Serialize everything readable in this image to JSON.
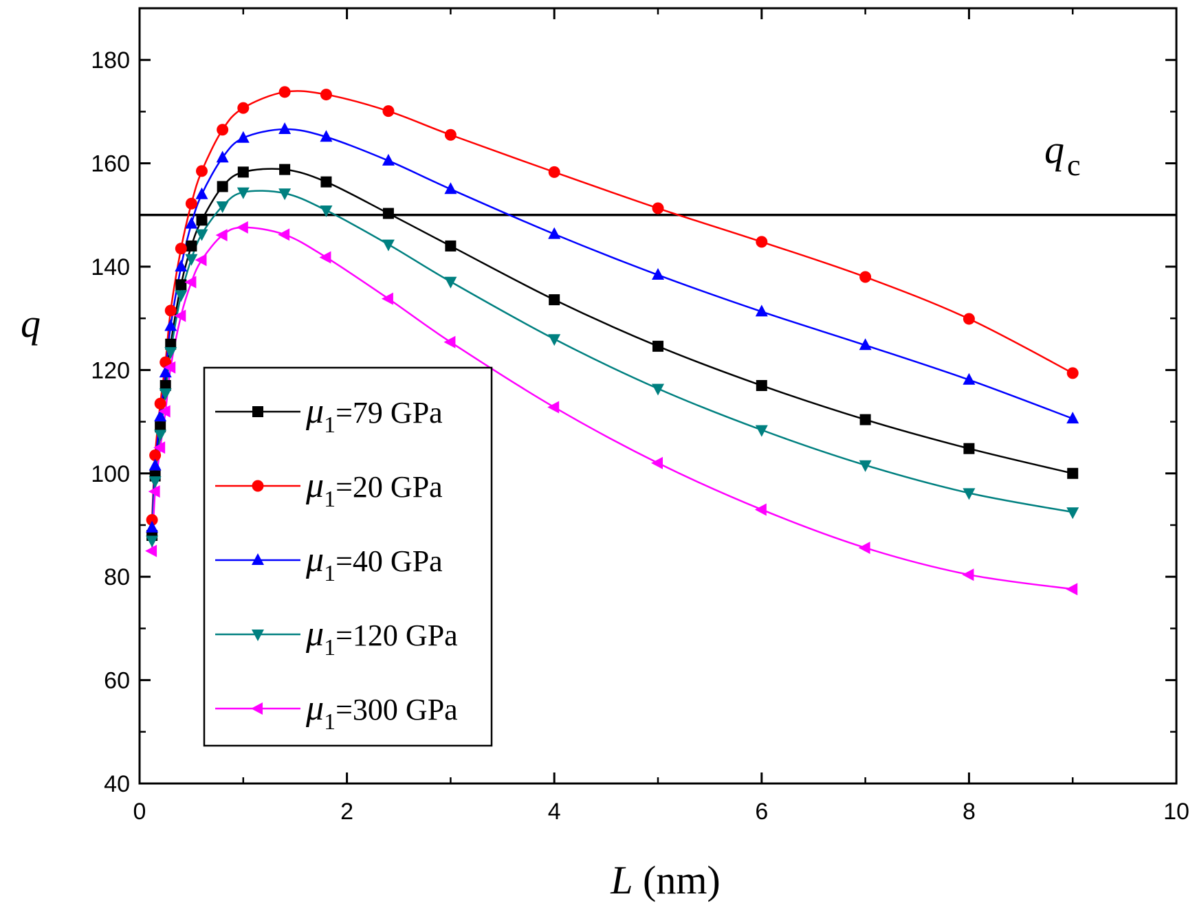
{
  "chart_data": {
    "type": "line",
    "title": "",
    "xlabel": {
      "symbol": "L",
      "unit": "(nm)"
    },
    "ylabel": "q",
    "xlim": [
      0,
      10
    ],
    "ylim": [
      40,
      190
    ],
    "xticks": [
      0,
      2,
      4,
      6,
      8,
      10
    ],
    "yticks": [
      40,
      60,
      80,
      100,
      120,
      140,
      160,
      180
    ],
    "xtick_labels": [
      "0",
      "2",
      "4",
      "6",
      "8",
      "10"
    ],
    "ytick_labels": [
      "40",
      "60",
      "80",
      "100",
      "120",
      "140",
      "160",
      "180"
    ],
    "grid": false,
    "legend_position": "lower-left",
    "reference_line": {
      "y": 150,
      "label_main": "q",
      "label_sub": "c",
      "color": "#000000"
    },
    "x": [
      0.12,
      0.15,
      0.2,
      0.25,
      0.3,
      0.4,
      0.5,
      0.6,
      0.8,
      1.0,
      1.4,
      1.8,
      2.4,
      3.0,
      4.0,
      5.0,
      6.0,
      7.0,
      8.0,
      9.0
    ],
    "series": [
      {
        "name": "μ1=79 GPa",
        "label_symbol": "μ",
        "label_sub": "1",
        "label_rest": "=79 GPa",
        "color": "#000000",
        "marker": "square",
        "values": [
          88,
          99.5,
          109,
          117,
          125,
          136.5,
          144,
          149,
          155.5,
          158.3,
          158.8,
          156.4,
          150.3,
          144,
          133.6,
          124.6,
          117,
          110.4,
          104.8,
          100
        ]
      },
      {
        "name": "μ1=20 GPa",
        "label_symbol": "μ",
        "label_sub": "1",
        "label_rest": "=20 GPa",
        "color": "#ff0000",
        "marker": "circle",
        "values": [
          91,
          103.5,
          113.5,
          121.5,
          131.5,
          143.5,
          152.2,
          158.5,
          166.5,
          170.7,
          173.8,
          173.3,
          170.1,
          165.5,
          158.3,
          151.3,
          144.8,
          138,
          129.9,
          119.4
        ]
      },
      {
        "name": "μ1=40 GPa",
        "label_symbol": "μ",
        "label_sub": "1",
        "label_rest": "=40 GPa",
        "color": "#0000ff",
        "marker": "triangle-up",
        "values": [
          89.5,
          101.5,
          111,
          119.5,
          128.5,
          140,
          148.3,
          154,
          161.1,
          164.9,
          166.6,
          165.1,
          160.5,
          155,
          146.3,
          138.4,
          131.3,
          124.8,
          118.1,
          110.6
        ]
      },
      {
        "name": "μ1=120 GPa",
        "label_symbol": "μ",
        "label_sub": "1",
        "label_rest": "=120 GPa",
        "color": "#008080",
        "marker": "triangle-down",
        "values": [
          87,
          98.5,
          107.5,
          115.5,
          123.5,
          134.5,
          141.5,
          146.3,
          151.7,
          154.4,
          154.2,
          150.9,
          144.3,
          137.1,
          126,
          116.4,
          108.4,
          101.6,
          96.2,
          92.5
        ]
      },
      {
        "name": "μ1=300 GPa",
        "label_symbol": "μ",
        "label_sub": "1",
        "label_rest": "=300 GPa",
        "color": "#ff00ff",
        "marker": "triangle-left",
        "values": [
          85,
          96.5,
          105,
          112,
          120.5,
          130.5,
          137,
          141.3,
          146.1,
          147.6,
          146.2,
          141.8,
          133.8,
          125.4,
          112.8,
          102,
          93,
          85.6,
          80.4,
          77.6
        ]
      }
    ]
  }
}
